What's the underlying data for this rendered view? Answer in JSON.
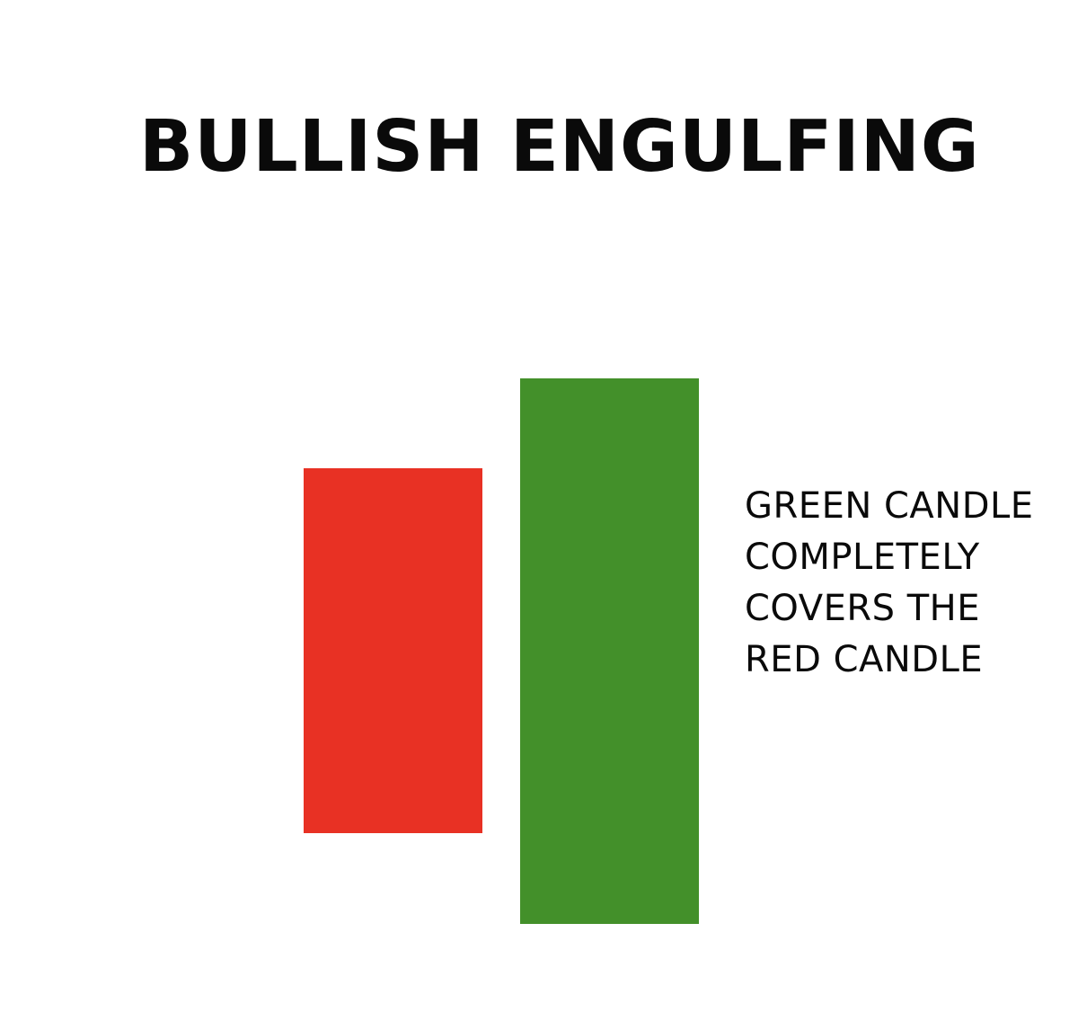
{
  "diagram": {
    "title": "BULLISH ENGULFING",
    "candles": [
      {
        "name": "red-candle",
        "color": "#e83124"
      },
      {
        "name": "green-candle",
        "color": "#43902a"
      }
    ],
    "caption_lines": [
      "GREEN CANDLE",
      "COMPLETELY",
      "COVERS THE",
      "RED CANDLE"
    ]
  }
}
